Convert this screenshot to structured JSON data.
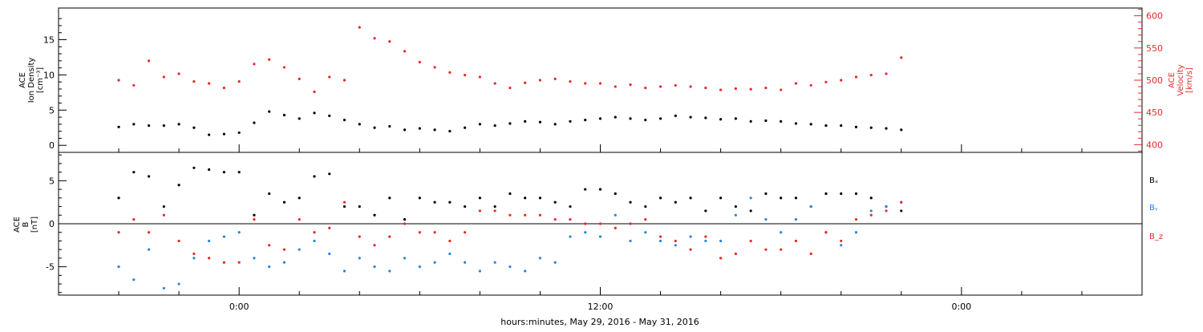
{
  "chart_data": [
    {
      "type": "scatter",
      "panel": "plasma",
      "left_axis": {
        "label_lines": [
          "ACE",
          "Ion Density",
          "[cm⁻³]"
        ],
        "ylim": [
          -1,
          19.5
        ],
        "ticks": [
          0,
          5,
          10,
          15
        ],
        "color": "#000000"
      },
      "right_axis": {
        "label_lines": [
          "ACE",
          "Velocity",
          "[km/s]"
        ],
        "ylim": [
          388,
          612
        ],
        "ticks": [
          400,
          450,
          500,
          550,
          600
        ],
        "color": "#e8282a"
      },
      "series": [
        {
          "name": "ACE Ion Density",
          "axis": "left",
          "color": "#000000",
          "x_hours": [
            -4.0,
            -3.5,
            -3.0,
            -2.5,
            -2.0,
            -1.5,
            -1.0,
            -0.5,
            0.0,
            0.5,
            1.0,
            1.5,
            2.0,
            2.5,
            3.0,
            3.5,
            4.0,
            4.5,
            5.0,
            5.5,
            6.0,
            6.5,
            7.0,
            7.5,
            8.0,
            8.5,
            9.0,
            9.5,
            10.0,
            10.5,
            11.0,
            11.5,
            12.0,
            12.5,
            13.0,
            13.5,
            14.0,
            14.5,
            15.0,
            15.5,
            16.0,
            16.5,
            17.0,
            17.5,
            18.0,
            18.5,
            19.0,
            19.5,
            20.0,
            20.5,
            21.0,
            21.5,
            22.0
          ],
          "values": [
            2.6,
            3.0,
            2.8,
            2.8,
            3.0,
            2.5,
            1.5,
            1.6,
            1.8,
            3.2,
            4.8,
            4.3,
            3.8,
            4.6,
            4.2,
            3.6,
            3.0,
            2.5,
            2.7,
            2.2,
            2.4,
            2.2,
            2.0,
            2.5,
            3.0,
            2.8,
            3.1,
            3.4,
            3.3,
            3.0,
            3.4,
            3.6,
            3.8,
            4.0,
            3.8,
            3.6,
            3.8,
            4.2,
            4.0,
            3.9,
            3.7,
            3.8,
            3.4,
            3.5,
            3.4,
            3.1,
            3.0,
            2.8,
            2.8,
            2.6,
            2.5,
            2.4,
            2.2
          ]
        },
        {
          "name": "ACE Velocity",
          "axis": "right",
          "color": "#e8282a",
          "x_hours": [
            -4.0,
            -3.5,
            -3.0,
            -2.5,
            -2.0,
            -1.5,
            -1.0,
            -0.5,
            0.0,
            0.5,
            1.0,
            1.5,
            2.0,
            2.5,
            3.0,
            3.5,
            4.0,
            4.5,
            5.0,
            5.5,
            6.0,
            6.5,
            7.0,
            7.5,
            8.0,
            8.5,
            9.0,
            9.5,
            10.0,
            10.5,
            11.0,
            11.5,
            12.0,
            12.5,
            13.0,
            13.5,
            14.0,
            14.5,
            15.0,
            15.5,
            16.0,
            16.5,
            17.0,
            17.5,
            18.0,
            18.5,
            19.0,
            19.5,
            20.0,
            20.5,
            21.0,
            21.5,
            22.0
          ],
          "values": [
            500,
            492,
            530,
            505,
            510,
            498,
            495,
            488,
            498,
            525,
            532,
            520,
            502,
            482,
            505,
            500,
            582,
            565,
            560,
            545,
            528,
            520,
            512,
            508,
            505,
            495,
            488,
            496,
            500,
            502,
            498,
            495,
            495,
            490,
            493,
            488,
            490,
            492,
            490,
            488,
            485,
            487,
            486,
            488,
            485,
            495,
            492,
            497,
            500,
            505,
            508,
            510,
            535
          ]
        }
      ]
    },
    {
      "type": "scatter",
      "panel": "magnetic",
      "left_axis": {
        "label_lines": [
          "ACE",
          "B",
          "[nT]"
        ],
        "ylim": [
          -8.3,
          8.3
        ],
        "ticks": [
          -5,
          0,
          5
        ],
        "zero_line": true
      },
      "series": [
        {
          "name": "Bₓ",
          "color": "#000000",
          "x_hours": [
            -4.0,
            -3.5,
            -3.0,
            -2.5,
            -2.0,
            -1.5,
            -1.0,
            -0.5,
            0.0,
            0.5,
            1.0,
            1.5,
            2.0,
            2.5,
            3.0,
            3.5,
            4.0,
            4.5,
            5.0,
            5.5,
            6.0,
            6.5,
            7.0,
            7.5,
            8.0,
            8.5,
            9.0,
            9.5,
            10.0,
            10.5,
            11.0,
            11.5,
            12.0,
            12.5,
            13.0,
            13.5,
            14.0,
            14.5,
            15.0,
            15.5,
            16.0,
            16.5,
            17.0,
            17.5,
            18.0,
            18.5,
            19.0,
            19.5,
            20.0,
            20.5,
            21.0,
            21.5,
            22.0
          ],
          "values": [
            3.0,
            6.0,
            5.5,
            2.0,
            4.5,
            6.5,
            6.3,
            6.0,
            6.0,
            1.0,
            3.5,
            2.5,
            3.0,
            5.5,
            5.8,
            2.0,
            2.0,
            1.0,
            3.0,
            0.5,
            3.0,
            2.5,
            2.5,
            2.0,
            3.0,
            2.0,
            3.5,
            3.0,
            3.0,
            2.5,
            2.0,
            4.0,
            4.0,
            3.5,
            2.5,
            2.0,
            3.0,
            2.5,
            3.0,
            1.5,
            3.0,
            2.0,
            1.5,
            3.5,
            3.0,
            3.0,
            2.0,
            3.5,
            3.5,
            3.5,
            3.0,
            2.0,
            1.5
          ]
        },
        {
          "name": "Bᵧ",
          "color": "#2a86d8",
          "x_hours": [
            -4.0,
            -3.5,
            -3.0,
            -2.5,
            -2.0,
            -1.5,
            -1.0,
            -0.5,
            0.0,
            0.5,
            1.0,
            1.5,
            2.0,
            2.5,
            3.0,
            3.5,
            4.0,
            4.5,
            5.0,
            5.5,
            6.0,
            6.5,
            7.0,
            7.5,
            8.0,
            8.5,
            9.0,
            9.5,
            10.0,
            10.5,
            11.0,
            11.5,
            12.0,
            12.5,
            13.0,
            13.5,
            14.0,
            14.5,
            15.0,
            15.5,
            16.0,
            16.5,
            17.0,
            17.5,
            18.0,
            18.5,
            19.0,
            19.5,
            20.0,
            20.5,
            21.0,
            21.5,
            22.0
          ],
          "values": [
            -5.0,
            -6.5,
            -3.0,
            -7.5,
            -7.0,
            -4.0,
            -2.0,
            -1.5,
            -1.0,
            -4.0,
            -5.0,
            -4.5,
            -3.0,
            -2.0,
            -3.5,
            -5.5,
            -4.0,
            -5.0,
            -5.5,
            -4.0,
            -5.0,
            -4.5,
            -3.5,
            -4.5,
            -5.5,
            -4.5,
            -5.0,
            -5.5,
            -4.0,
            -4.5,
            -1.5,
            -1.0,
            -1.5,
            1.0,
            -2.0,
            -1.0,
            -2.0,
            -2.5,
            -1.5,
            -2.0,
            -2.0,
            1.0,
            3.0,
            0.5,
            -1.0,
            0.5,
            2.0,
            -1.0,
            -2.5,
            -1.0,
            1.5,
            2.0,
            2.5
          ]
        },
        {
          "name": "B_z",
          "color": "#e8282a",
          "x_hours": [
            -4.0,
            -3.5,
            -3.0,
            -2.5,
            -2.0,
            -1.5,
            -1.0,
            -0.5,
            0.0,
            0.5,
            1.0,
            1.5,
            2.0,
            2.5,
            3.0,
            3.5,
            4.0,
            4.5,
            5.0,
            5.5,
            6.0,
            6.5,
            7.0,
            7.5,
            8.0,
            8.5,
            9.0,
            9.5,
            10.0,
            10.5,
            11.0,
            11.5,
            12.0,
            12.5,
            13.0,
            13.5,
            14.0,
            14.5,
            15.0,
            15.5,
            16.0,
            16.5,
            17.0,
            17.5,
            18.0,
            18.5,
            19.0,
            19.5,
            20.0,
            20.5,
            21.0,
            21.5,
            22.0
          ],
          "values": [
            -1.0,
            0.5,
            -1.0,
            1.0,
            -2.0,
            -3.5,
            -4.0,
            -4.5,
            -4.5,
            0.5,
            -2.5,
            -3.0,
            0.5,
            -1.0,
            -0.5,
            2.5,
            -1.5,
            -2.5,
            -1.5,
            0.0,
            -1.0,
            -1.0,
            -2.0,
            -1.0,
            1.5,
            1.5,
            1.0,
            1.0,
            1.0,
            0.5,
            0.5,
            0.0,
            0.0,
            -0.5,
            0.0,
            0.5,
            -1.5,
            -2.0,
            -3.0,
            -1.5,
            -4.0,
            -3.5,
            -2.0,
            -3.0,
            -3.0,
            -2.0,
            -3.5,
            -1.0,
            -2.0,
            0.5,
            1.0,
            1.5,
            2.5
          ]
        }
      ],
      "legend": {
        "placement": "right",
        "labels": [
          "Bₓ",
          "Bᵧ",
          "B_z"
        ],
        "colors": [
          "#000000",
          "#2a86d8",
          "#e8282a"
        ]
      }
    }
  ],
  "x_axis": {
    "range_hours": [
      -6.0,
      30.0
    ],
    "tick_labels": [
      {
        "hours": 0,
        "label": "0:00"
      },
      {
        "hours": 12,
        "label": "12:00"
      },
      {
        "hours": 24,
        "label": "0:00"
      }
    ],
    "minor_step_hours": 2,
    "label": "hours:minutes, May 29, 2016 - May 31, 2016"
  }
}
